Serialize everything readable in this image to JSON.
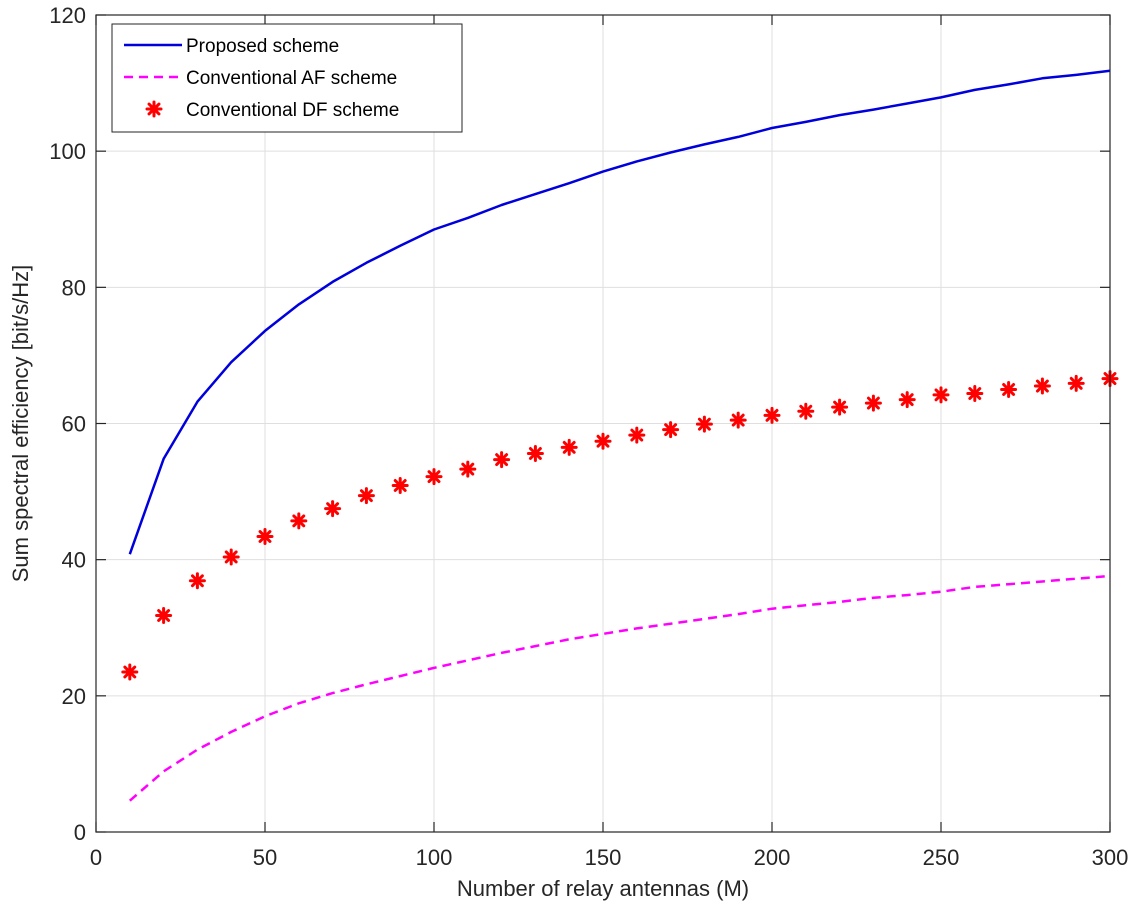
{
  "chart_data": {
    "type": "line",
    "xlabel": "Number of relay antennas (M)",
    "ylabel": "Sum spectral efficiency [bit/s/Hz]",
    "xlim": [
      0,
      300
    ],
    "ylim": [
      0,
      120
    ],
    "xticks": [
      0,
      50,
      100,
      150,
      200,
      250,
      300
    ],
    "yticks": [
      0,
      20,
      40,
      60,
      80,
      100,
      120
    ],
    "grid": true,
    "legend_position": "top-left",
    "x": [
      10,
      20,
      30,
      40,
      50,
      60,
      70,
      80,
      90,
      100,
      110,
      120,
      130,
      140,
      150,
      160,
      170,
      180,
      190,
      200,
      210,
      220,
      230,
      240,
      250,
      260,
      270,
      280,
      290,
      300
    ],
    "series": [
      {
        "name": "Proposed scheme",
        "style": "solid-line",
        "color": "#0000dd",
        "values": [
          40.8,
          54.8,
          63.2,
          69.0,
          73.6,
          77.5,
          80.8,
          83.6,
          86.1,
          88.5,
          90.2,
          92.1,
          93.7,
          95.3,
          97.0,
          98.5,
          99.8,
          101.0,
          102.1,
          103.4,
          104.3,
          105.3,
          106.1,
          107.0,
          107.9,
          109.0,
          109.8,
          110.7,
          111.2,
          111.8
        ]
      },
      {
        "name": "Conventional AF scheme",
        "style": "dashed-line",
        "color": "#ff00ff",
        "values": [
          4.6,
          8.9,
          12.1,
          14.7,
          17.0,
          18.9,
          20.4,
          21.7,
          22.9,
          24.1,
          25.2,
          26.3,
          27.3,
          28.3,
          29.1,
          29.9,
          30.6,
          31.3,
          32.0,
          32.8,
          33.3,
          33.8,
          34.4,
          34.8,
          35.3,
          36.0,
          36.4,
          36.8,
          37.2,
          37.6
        ]
      },
      {
        "name": "Conventional DF scheme",
        "style": "asterisk-markers",
        "color": "#ff0000",
        "values": [
          23.5,
          31.8,
          36.9,
          40.4,
          43.4,
          45.7,
          47.5,
          49.4,
          50.9,
          52.2,
          53.3,
          54.7,
          55.6,
          56.5,
          57.4,
          58.3,
          59.1,
          59.9,
          60.5,
          61.2,
          61.8,
          62.4,
          63.0,
          63.5,
          64.2,
          64.4,
          65.0,
          65.5,
          65.9,
          66.6
        ]
      }
    ]
  }
}
